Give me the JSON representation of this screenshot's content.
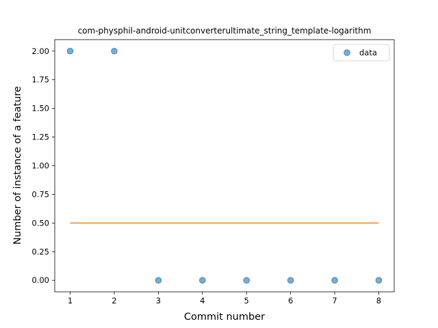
{
  "chart_data": {
    "type": "scatter",
    "title": "com-physphil-android-unitconverterultimate_string_template-logarithm",
    "xlabel": "Commit number",
    "ylabel": "Number of instance of a feature",
    "xlim": [
      0.65,
      8.35
    ],
    "ylim": [
      -0.1,
      2.1
    ],
    "xticks": [
      "1",
      "2",
      "3",
      "4",
      "5",
      "6",
      "7",
      "8"
    ],
    "yticks": [
      "0.00",
      "0.25",
      "0.50",
      "0.75",
      "1.00",
      "1.25",
      "1.50",
      "1.75",
      "2.00"
    ],
    "grid": false,
    "legend_position": "top-right",
    "series": [
      {
        "name": "data",
        "kind": "scatter",
        "color": "#1f77b4",
        "x": [
          1,
          2,
          3,
          4,
          5,
          6,
          7,
          8
        ],
        "y": [
          2,
          2,
          0,
          0,
          0,
          0,
          0,
          0
        ]
      },
      {
        "kind": "line",
        "color": "#ff7f0e",
        "x": [
          1,
          8
        ],
        "y": [
          0.5,
          0.5
        ]
      }
    ]
  }
}
